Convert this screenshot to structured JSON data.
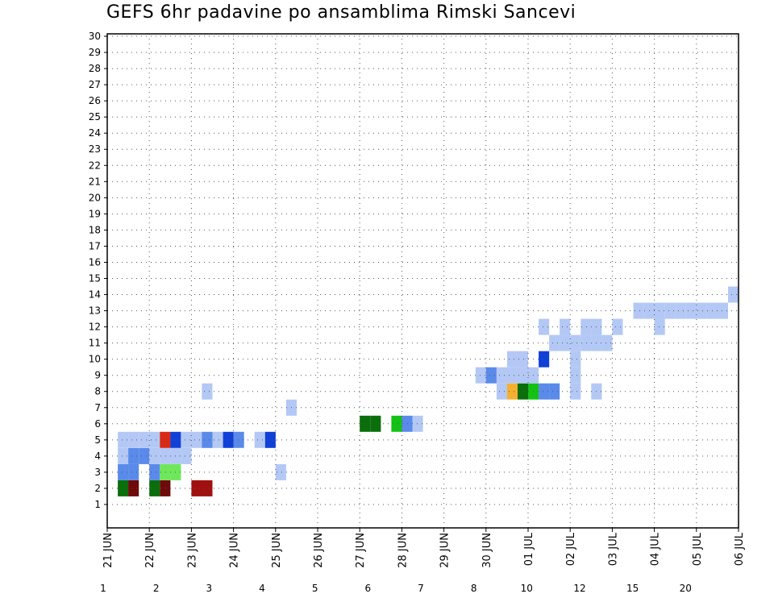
{
  "chart_data": {
    "type": "heatmap",
    "title": "GEFS 6hr padavine po ansamblima Rimski Sancevi",
    "xlabel": "",
    "ylabel": "",
    "x_tick_labels": [
      "21 JUN",
      "22 JUN",
      "23 JUN",
      "24 JUN",
      "25 JUN",
      "26 JUN",
      "27 JUN",
      "28 JUN",
      "29 JUN",
      "30 JUN",
      "01 JUL",
      "02 JUL",
      "03 JUL",
      "04 JUL",
      "05 JUL",
      "06 JUL"
    ],
    "y_tick_labels": [
      "1",
      "2",
      "3",
      "4",
      "5",
      "6",
      "7",
      "8",
      "9",
      "10",
      "11",
      "12",
      "13",
      "14",
      "15",
      "16",
      "17",
      "18",
      "19",
      "20",
      "21",
      "22",
      "23",
      "24",
      "25",
      "26",
      "27",
      "28",
      "29",
      "30"
    ],
    "y_range": [
      0,
      30
    ],
    "time_steps_per_day": 4,
    "n_time_steps": 60,
    "grid": true,
    "legend_position": "bottom",
    "colorbar": {
      "levels": [
        "1",
        "2",
        "3",
        "4",
        "5",
        "6",
        "7",
        "8",
        "10",
        "12",
        "15",
        "20"
      ],
      "colors": [
        "#b3c8f5",
        "#5a8aea",
        "#1040d8",
        "#6ee85a",
        "#14c214",
        "#0a6e0a",
        "#f5f50a",
        "#f5b030",
        "#f57a14",
        "#d82a14",
        "#a01010",
        "#6e0a0a"
      ]
    },
    "cells": [
      [
        0,
        0,
        11
      ],
      [
        1,
        2,
        5
      ],
      [
        2,
        2,
        11
      ],
      [
        4,
        2,
        5
      ],
      [
        8,
        2,
        10
      ],
      [
        9,
        2,
        10
      ],
      [
        5,
        2,
        11
      ],
      [
        1,
        3,
        1
      ],
      [
        1,
        3,
        2
      ],
      [
        2,
        3,
        1
      ],
      [
        4,
        3,
        1
      ],
      [
        5,
        3,
        3
      ],
      [
        6,
        3,
        3
      ],
      [
        16,
        3,
        0
      ],
      [
        16,
        3,
        1
      ],
      [
        1,
        4,
        0
      ],
      [
        1,
        4,
        1
      ],
      [
        1,
        4,
        2
      ],
      [
        2,
        4,
        1
      ],
      [
        3,
        4,
        1
      ],
      [
        4,
        4,
        0
      ],
      [
        4,
        4,
        1
      ],
      [
        4,
        4,
        2
      ],
      [
        4,
        4,
        3
      ],
      [
        5,
        4,
        0
      ],
      [
        5,
        4,
        1
      ],
      [
        5,
        4,
        4
      ],
      [
        6,
        4,
        0
      ],
      [
        6,
        4,
        3
      ],
      [
        7,
        4,
        0
      ],
      [
        1,
        5,
        0
      ],
      [
        1,
        5,
        1
      ],
      [
        1,
        5,
        2
      ],
      [
        1,
        5,
        3
      ],
      [
        2,
        5,
        0
      ],
      [
        2,
        5,
        5
      ],
      [
        2,
        5,
        7
      ],
      [
        3,
        5,
        0
      ],
      [
        3,
        5,
        1
      ],
      [
        3,
        5,
        2
      ],
      [
        3,
        5,
        7
      ],
      [
        3,
        5,
        10
      ],
      [
        3,
        5,
        11
      ],
      [
        4,
        5,
        0
      ],
      [
        4,
        5,
        1
      ],
      [
        4,
        5,
        2
      ],
      [
        4,
        5,
        3
      ],
      [
        4,
        5,
        5
      ],
      [
        4,
        5,
        7
      ],
      [
        4,
        5,
        12
      ],
      [
        4,
        5,
        13
      ],
      [
        4,
        5,
        16
      ],
      [
        4,
        5,
        17
      ],
      [
        5,
        5,
        9
      ],
      [
        5,
        5,
        5
      ],
      [
        5,
        5,
        0
      ],
      [
        6,
        5,
        2
      ],
      [
        6,
        5,
        0
      ],
      [
        7,
        5,
        0
      ],
      [
        8,
        5,
        0
      ],
      [
        10,
        5,
        0
      ],
      [
        7,
        5,
        1
      ],
      [
        8,
        5,
        1
      ],
      [
        6,
        5,
        1
      ],
      [
        9,
        5,
        1
      ],
      [
        10,
        5,
        1
      ],
      [
        11,
        5,
        2
      ],
      [
        11,
        5,
        1
      ],
      [
        12,
        5,
        1
      ],
      [
        14,
        5,
        0
      ],
      [
        14,
        5,
        1
      ],
      [
        14,
        5,
        2
      ],
      [
        15,
        5,
        2
      ],
      [
        14,
        5,
        3
      ],
      [
        14,
        5,
        1
      ],
      [
        14,
        5,
        0
      ],
      [
        17,
        7,
        0
      ],
      [
        24,
        6,
        5
      ],
      [
        25,
        6,
        5
      ],
      [
        27,
        6,
        4
      ],
      [
        28,
        6,
        1
      ],
      [
        29,
        6,
        0
      ],
      [
        37,
        8,
        0
      ],
      [
        38,
        8,
        7
      ],
      [
        39,
        8,
        5
      ],
      [
        40,
        8,
        4
      ],
      [
        41,
        8,
        1
      ],
      [
        42,
        8,
        1
      ],
      [
        9,
        8,
        0
      ],
      [
        44,
        8,
        0
      ],
      [
        46,
        8,
        0
      ],
      [
        44,
        9,
        0
      ],
      [
        44,
        10,
        0
      ],
      [
        35,
        9,
        0
      ],
      [
        36,
        9,
        1
      ],
      [
        36,
        9,
        2
      ],
      [
        36,
        9,
        0
      ],
      [
        37,
        9,
        0
      ],
      [
        38,
        9,
        0
      ],
      [
        39,
        9,
        0
      ],
      [
        40,
        9,
        0
      ],
      [
        38,
        10,
        0
      ],
      [
        39,
        10,
        0
      ],
      [
        41,
        10,
        2
      ],
      [
        44,
        10,
        1
      ],
      [
        44,
        10,
        2
      ],
      [
        42,
        11,
        0
      ],
      [
        43,
        11,
        0
      ],
      [
        44,
        11,
        0
      ],
      [
        42,
        11,
        5
      ],
      [
        44,
        11,
        0
      ],
      [
        45,
        11,
        0
      ],
      [
        46,
        11,
        0
      ],
      [
        47,
        11,
        0
      ],
      [
        41,
        12,
        0
      ],
      [
        41,
        12,
        0
      ],
      [
        41,
        12,
        0
      ],
      [
        48,
        12,
        0
      ],
      [
        43,
        12,
        0
      ],
      [
        45,
        12,
        0
      ],
      [
        46,
        12,
        0
      ],
      [
        50,
        13,
        0
      ],
      [
        51,
        13,
        0
      ],
      [
        52,
        13,
        0
      ],
      [
        53,
        13,
        0
      ],
      [
        52,
        13,
        0
      ],
      [
        52,
        12,
        0
      ],
      [
        54,
        13,
        0
      ],
      [
        55,
        13,
        0
      ],
      [
        56,
        13,
        0
      ],
      [
        57,
        13,
        0
      ],
      [
        58,
        13,
        0
      ],
      [
        59,
        14,
        0
      ]
    ]
  }
}
